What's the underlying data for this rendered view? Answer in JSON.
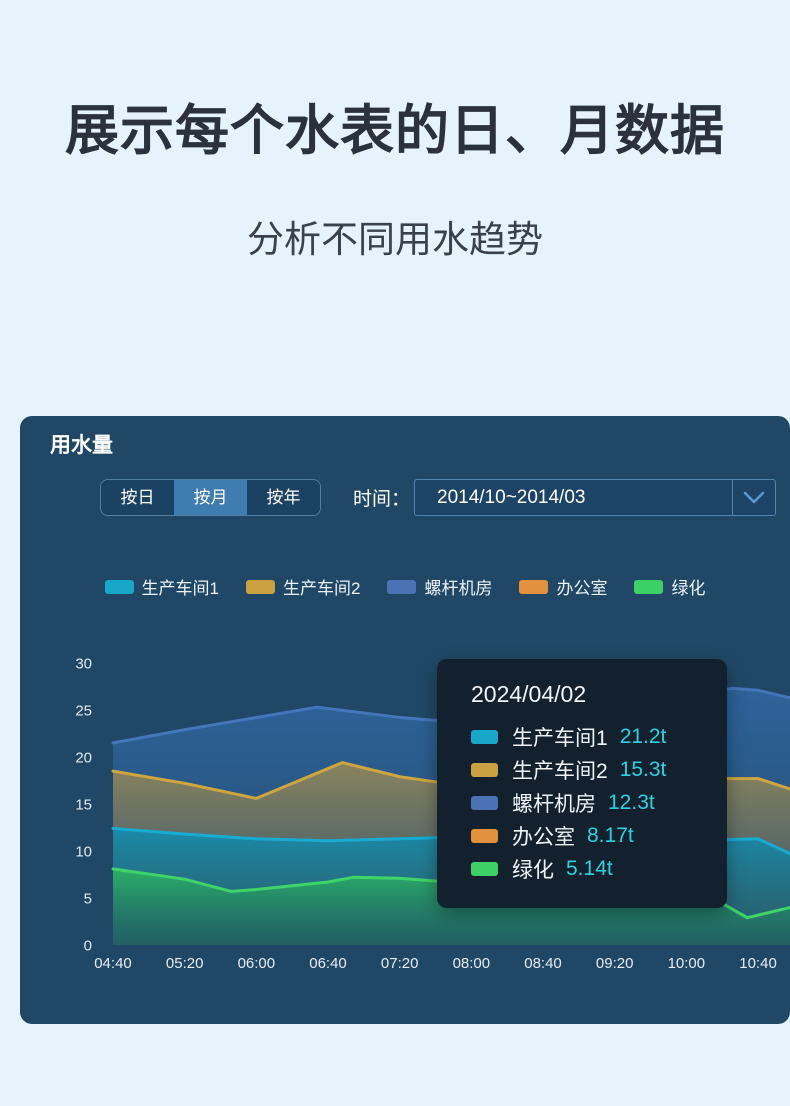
{
  "page": {
    "title": "展示每个水表的日、月数据",
    "subtitle": "分析不同用水趋势"
  },
  "panel": {
    "title": "用水量",
    "tabs": [
      {
        "key": "daily",
        "label": "按日",
        "active": false
      },
      {
        "key": "monthly",
        "label": "按月",
        "active": true
      },
      {
        "key": "yearly",
        "label": "按年",
        "active": false
      }
    ],
    "time_label": "时间：",
    "time_range": "2014/10~2014/03",
    "chevron_icon": "chevron-down-icon",
    "colors": {
      "panel_bg": "#204866",
      "tab_active_bg": "#3f7cb0",
      "tab_bg": "#1b4262",
      "control_border": "#4f86ad"
    }
  },
  "chart_data": {
    "type": "area",
    "title": "用水量",
    "x_labels": [
      "04:40",
      "05:20",
      "06:00",
      "06:40",
      "07:20",
      "08:00",
      "08:40",
      "09:20",
      "10:00",
      "10:40"
    ],
    "ylim": [
      0,
      30
    ],
    "y_ticks": [
      0,
      5,
      10,
      15,
      20,
      25,
      30
    ],
    "unit": "t",
    "grid": false,
    "legend_position": "top-center",
    "series": [
      {
        "key": "workshop1",
        "name": "生产车间1",
        "color": "#18a6c9",
        "line": "#17abd2",
        "fill_top": "rgba(21,140,175,0.95)",
        "fill_bottom": "rgba(24,94,106,0.50)",
        "z": 3,
        "visible": true,
        "points": [
          [
            0,
            12.4
          ],
          [
            1,
            11.8
          ],
          [
            2,
            11.3
          ],
          [
            3,
            11.1
          ],
          [
            4,
            11.3
          ],
          [
            5,
            11.5
          ],
          [
            6,
            11.6
          ],
          [
            7,
            11.4
          ],
          [
            8.5,
            11.2
          ],
          [
            9,
            11.3
          ],
          [
            9.45,
            9.7
          ]
        ]
      },
      {
        "key": "workshop2",
        "name": "生产车间2",
        "color": "#c9a140",
        "line": "#cfa63e",
        "fill_top": "rgba(196,156,64,0.62)",
        "fill_bottom": "rgba(118,108,82,0.22)",
        "z": 1,
        "visible": true,
        "points": [
          [
            0,
            18.5
          ],
          [
            1,
            17.2
          ],
          [
            2,
            15.6
          ],
          [
            3.2,
            19.4
          ],
          [
            4,
            17.9
          ],
          [
            5,
            16.8
          ],
          [
            6,
            16.3
          ],
          [
            7,
            16.8
          ],
          [
            8.3,
            17.7
          ],
          [
            9,
            17.7
          ],
          [
            9.45,
            16.6
          ]
        ]
      },
      {
        "key": "screw-room",
        "name": "螺杆机房",
        "color": "#4a72b4",
        "line": "#4576bb",
        "fill_top": "rgba(47,100,156,0.96)",
        "fill_bottom": "rgba(33,76,108,0.90)",
        "z": 0,
        "visible": true,
        "points": [
          [
            0,
            21.5
          ],
          [
            1,
            22.9
          ],
          [
            2,
            24.2
          ],
          [
            2.85,
            25.3
          ],
          [
            4,
            24.2
          ],
          [
            5,
            23.6
          ],
          [
            6,
            24.4
          ],
          [
            7,
            25.8
          ],
          [
            8.65,
            27.3
          ],
          [
            9,
            27.1
          ],
          [
            9.45,
            26.3
          ]
        ]
      },
      {
        "key": "office",
        "name": "办公室",
        "color": "#e2923c",
        "line": "#e2923c",
        "fill_top": "rgba(226,146,60,0.6)",
        "fill_bottom": "rgba(226,146,60,0.1)",
        "z": 2,
        "visible": false,
        "note": "curve hidden behind other series layers in the screenshot",
        "points": [
          [
            0,
            8.2
          ],
          [
            4.7,
            8.17
          ],
          [
            9.45,
            8.0
          ]
        ]
      },
      {
        "key": "greening",
        "name": "绿化",
        "color": "#3bd167",
        "line": "#3ed468",
        "fill_top": "rgba(44,182,97,0.90)",
        "fill_bottom": "rgba(28,108,92,0.35)",
        "z": 4,
        "visible": true,
        "points": [
          [
            0,
            8.1
          ],
          [
            1,
            7.0
          ],
          [
            1.65,
            5.7
          ],
          [
            2,
            5.9
          ],
          [
            3,
            6.7
          ],
          [
            3.35,
            7.2
          ],
          [
            4,
            7.1
          ],
          [
            5,
            6.5
          ],
          [
            6,
            5.7
          ],
          [
            7,
            5.0
          ],
          [
            8.53,
            4.3
          ],
          [
            8.85,
            2.9
          ],
          [
            9.45,
            4.0
          ]
        ]
      }
    ]
  },
  "tooltip": {
    "title": "2024/04/02",
    "value_color": "#2bd2e2",
    "rows": [
      {
        "name": "生产车间1",
        "value": "21.2t"
      },
      {
        "name": "生产车间2",
        "value": "15.3t"
      },
      {
        "name": "螺杆机房",
        "value": "12.3t"
      },
      {
        "name": "办公室",
        "value": "8.17t"
      },
      {
        "name": "绿化",
        "value": "5.14t"
      }
    ]
  }
}
